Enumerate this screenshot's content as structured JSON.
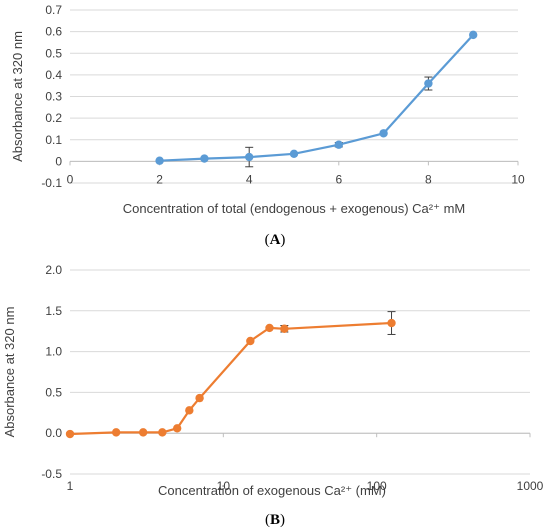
{
  "chart_data": [
    {
      "type": "line",
      "panel_label": "(A)",
      "xlabel": "Concentration of total (endogenous + exogenous) Ca²⁺ mM",
      "ylabel": "Absorbance at 320 nm",
      "xlim": [
        0,
        10
      ],
      "ylim": [
        -0.1,
        0.7
      ],
      "x_ticks": [
        "0",
        "2",
        "4",
        "6",
        "8",
        "10"
      ],
      "y_ticks": [
        "-0.1",
        "0",
        "0.1",
        "0.2",
        "0.3",
        "0.4",
        "0.5",
        "0.6",
        "0.7"
      ],
      "x_scale": "linear",
      "grid": "horizontal",
      "color": "#5b9bd5",
      "series": [
        {
          "x": [
            2,
            3,
            4,
            5,
            6,
            7,
            8,
            9
          ],
          "y": [
            0.003,
            0.013,
            0.02,
            0.035,
            0.077,
            0.13,
            0.36,
            0.585
          ],
          "err": [
            0,
            0,
            0.045,
            0,
            0.01,
            0,
            0.03,
            0
          ]
        }
      ]
    },
    {
      "type": "line",
      "panel_label": "(B)",
      "xlabel": "Concentration of exogenous Ca²⁺ (mM)",
      "ylabel": "Absorbance at 320 nm",
      "xlim": [
        1,
        1000
      ],
      "ylim": [
        -0.5,
        2.0
      ],
      "x_ticks": [
        "1",
        "10",
        "100",
        "1000"
      ],
      "y_ticks": [
        "-0.5",
        "0.0",
        "0.5",
        "1.0",
        "1.5",
        "2.0"
      ],
      "x_scale": "log",
      "grid": "horizontal",
      "color": "#ed7d31",
      "series": [
        {
          "x": [
            1,
            2,
            3,
            4,
            5,
            6,
            7,
            15,
            20,
            25,
            125
          ],
          "y": [
            -0.01,
            0.01,
            0.01,
            0.01,
            0.06,
            0.28,
            0.43,
            1.13,
            1.29,
            1.28,
            1.35
          ],
          "err": [
            0,
            0,
            0,
            0,
            0,
            0,
            0,
            0,
            0,
            0.04,
            0.14
          ]
        }
      ]
    }
  ]
}
